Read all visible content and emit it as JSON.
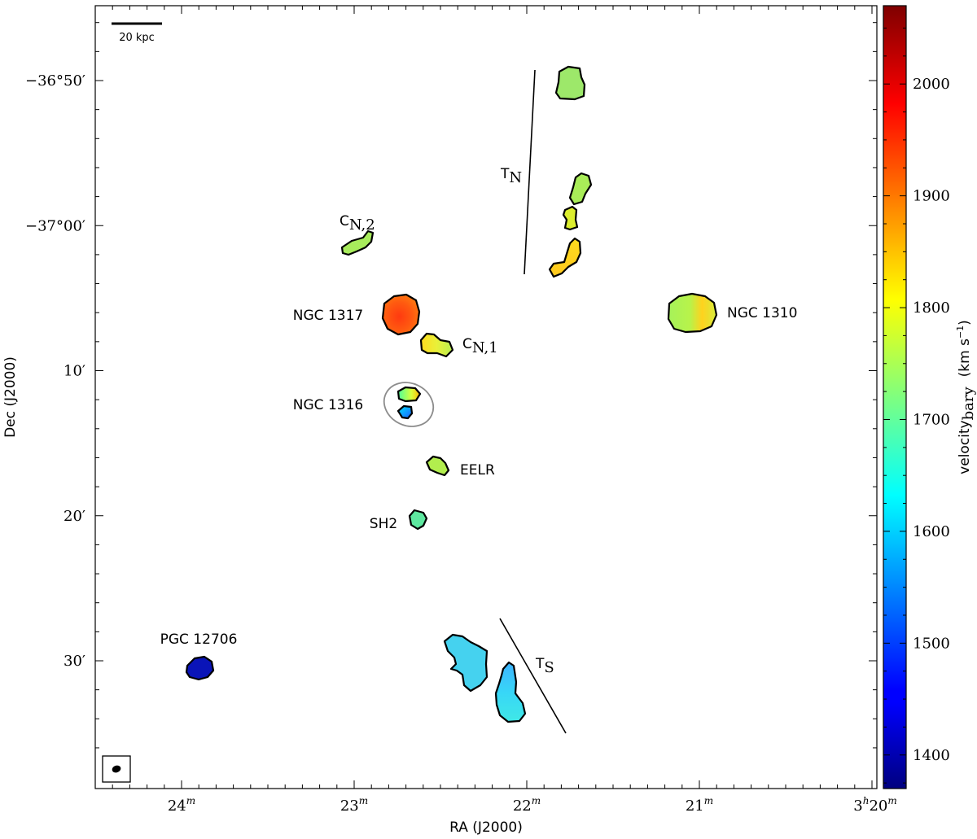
{
  "chart_data": {
    "type": "map",
    "xlabel": "RA (J2000)",
    "ylabel": "Dec (J2000)",
    "x_ticks": [
      {
        "label": "24",
        "sup": "m",
        "value": 24
      },
      {
        "label": "23",
        "sup": "m",
        "value": 23
      },
      {
        "label": "22",
        "sup": "m",
        "value": 22
      },
      {
        "label": "21",
        "sup": "m",
        "value": 21
      },
      {
        "label": "3",
        "sup": "h",
        "label2": "20",
        "sup2": "m",
        "value": 20
      }
    ],
    "y_ticks": [
      {
        "label": "−36°50′",
        "value": -36.8333
      },
      {
        "label": "−37°00′",
        "value": -37.0
      },
      {
        "label": "10′",
        "value": -37.1667
      },
      {
        "label": "20′",
        "value": -37.3333
      },
      {
        "label": "30′",
        "value": -37.5
      }
    ],
    "colorbar": {
      "label": "velocity",
      "label_sub": "bary",
      "unit": "(km s",
      "unit_sup": "−1",
      "unit_end": ")",
      "min": 1370,
      "max": 2070,
      "ticks": [
        1400,
        1500,
        1600,
        1700,
        1800,
        1900,
        2000
      ]
    },
    "scalebar": {
      "label": "20 kpc"
    },
    "sources": [
      {
        "name": "NGC 1317",
        "velocity": 1930
      },
      {
        "name": "C",
        "sub": "N,1",
        "velocity": 1810
      },
      {
        "name": "C",
        "sub": "N,2",
        "velocity": 1760
      },
      {
        "name": "NGC 1316",
        "velocity": 1800
      },
      {
        "name": "EELR",
        "velocity": 1760
      },
      {
        "name": "SH2",
        "velocity": 1680
      },
      {
        "name": "NGC 1310",
        "velocity": 1780
      },
      {
        "name": "PGC 12706",
        "velocity": 1390
      },
      {
        "name": "T",
        "sub": "N",
        "velocity": 1760
      },
      {
        "name": "T",
        "sub": "S",
        "velocity": 1620
      }
    ]
  }
}
